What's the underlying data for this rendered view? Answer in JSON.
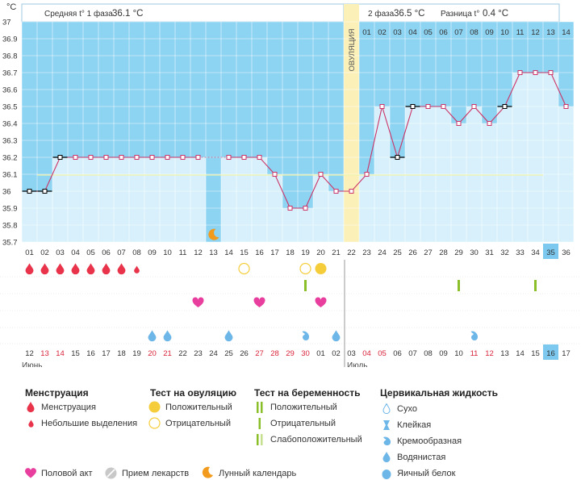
{
  "header": {
    "unit": "°C",
    "phase1_label": "Средняя t° 1 фаза",
    "phase1_value": "36.1 °C",
    "phase2_label": "2 фаза",
    "phase2_value": "36.5 °C",
    "diff_label": "Разница t°",
    "diff_value": "0.4 °C",
    "ovulation_label": "ОВУЛЯЦИЯ"
  },
  "chart_data": {
    "type": "line",
    "ylim": [
      35.7,
      37.0
    ],
    "y_ticks": [
      "37",
      "36.9",
      "36.8",
      "36.7",
      "36.6",
      "36.5",
      "36.4",
      "36.3",
      "36.2",
      "36.1",
      "36",
      "35.9",
      "35.8",
      "35.7"
    ],
    "cycle_days": [
      "01",
      "02",
      "03",
      "04",
      "05",
      "06",
      "07",
      "08",
      "09",
      "10",
      "11",
      "12",
      "13",
      "14",
      "15",
      "16",
      "17",
      "18",
      "19",
      "20",
      "21",
      "22",
      "23",
      "24",
      "25",
      "26",
      "27",
      "28",
      "29",
      "30",
      "31",
      "32",
      "33",
      "34",
      "35",
      "36"
    ],
    "phase2_day_labels": [
      "01",
      "02",
      "03",
      "04",
      "05",
      "06",
      "07",
      "08",
      "09",
      "10",
      "11",
      "12",
      "13",
      "14"
    ],
    "calendar_dates": [
      "12",
      "13",
      "14",
      "15",
      "16",
      "17",
      "18",
      "19",
      "20",
      "21",
      "22",
      "23",
      "24",
      "25",
      "26",
      "27",
      "28",
      "29",
      "30",
      "01",
      "02",
      "03",
      "04",
      "05",
      "06",
      "07",
      "08",
      "09",
      "10",
      "11",
      "12",
      "13",
      "14",
      "15",
      "16",
      "17"
    ],
    "weekend_date_indices": [
      1,
      2,
      8,
      9,
      15,
      16,
      17,
      18,
      22,
      23,
      29,
      30
    ],
    "month_labels": [
      "Июнь",
      "Июль"
    ],
    "temperatures": [
      36.0,
      36.0,
      36.2,
      36.2,
      36.2,
      36.2,
      36.2,
      36.2,
      36.2,
      36.2,
      36.2,
      36.2,
      null,
      36.2,
      36.2,
      36.2,
      36.1,
      35.9,
      35.9,
      36.1,
      36.0,
      36.0,
      36.1,
      36.5,
      36.2,
      36.5,
      36.5,
      36.5,
      36.4,
      36.5,
      36.4,
      36.5,
      36.7,
      36.7,
      36.7,
      36.5
    ],
    "marker_style": [
      "bk",
      "bk",
      "bk",
      "p",
      "p",
      "p",
      "p",
      "p",
      "p",
      "p",
      "p",
      "p",
      null,
      "p",
      "p",
      "p",
      "p",
      "p",
      "p",
      "p",
      "p",
      "p",
      "p",
      "p",
      "bk",
      "bk",
      "p",
      "p",
      "p",
      "p",
      "p",
      "bk",
      "p",
      "p",
      "p",
      "p"
    ],
    "coverline": 36.1,
    "ovulation_day": 22,
    "current_day": 35,
    "moon_day": 13
  },
  "symptoms": {
    "menstruation": [
      1,
      2,
      3,
      4,
      5,
      6,
      7
    ],
    "spotting": [
      8
    ],
    "ovulation_positive": [
      20
    ],
    "ovulation_negative": [
      15,
      19
    ],
    "preg_positive": [],
    "preg_negative": [
      19,
      29,
      34
    ],
    "intercourse": [
      12,
      16,
      20
    ],
    "fluid_watery": [
      9,
      10,
      14,
      21
    ],
    "fluid_creamy": [
      19,
      30
    ]
  },
  "legend": {
    "menstruation_title": "Менструация",
    "menstruation": "Менструация",
    "spotting": "Небольшие выделения",
    "ovulation_title": "Тест на овуляцию",
    "ov_positive": "Положительный",
    "ov_negative": "Отрицательный",
    "pregnancy_title": "Тест на беременность",
    "pr_positive": "Положительный",
    "pr_negative": "Отрицательный",
    "pr_weak": "Слабоположительный",
    "fluid_title": "Цервикальная жидкость",
    "fluid_dry": "Сухо",
    "fluid_sticky": "Клейкая",
    "fluid_creamy": "Кремообразная",
    "fluid_watery": "Водянистая",
    "fluid_eggwhite": "Яичный белок",
    "intercourse": "Половой акт",
    "medication": "Прием лекарств",
    "lunar": "Лунный календарь"
  },
  "colors": {
    "sky": "#8dd3f2",
    "bar": "#d8f0fb",
    "ovulation": "#fbf1b8",
    "line": "#cc3366",
    "menstruation": "#e8334a",
    "heart": "#e83e9e",
    "fluid": "#6db6e8",
    "test_green": "#8bbf2a",
    "test_yellow": "#f5cd3b",
    "moon": "#f29a1b",
    "weekend": "#d9243b",
    "current": "#7cc8ee"
  }
}
